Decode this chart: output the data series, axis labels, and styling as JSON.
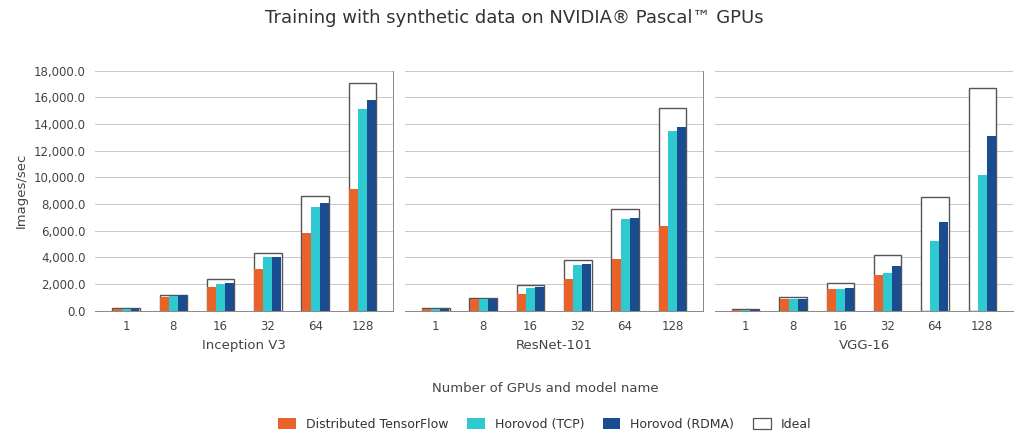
{
  "title": "Training with synthetic data on NVIDIA® Pascal™ GPUs",
  "xlabel": "Number of GPUs and model name",
  "ylabel": "Images/sec",
  "ylim": [
    0,
    18000
  ],
  "yticks": [
    0,
    2000,
    4000,
    6000,
    8000,
    10000,
    12000,
    14000,
    16000,
    18000
  ],
  "gpu_counts": [
    1,
    8,
    16,
    32,
    64,
    128
  ],
  "models": [
    "Inception V3",
    "ResNet-101",
    "VGG-16"
  ],
  "series": {
    "Distributed TensorFlow": {
      "color": "#E8622A",
      "data": {
        "Inception V3": [
          105,
          1000,
          1750,
          3100,
          5800,
          9100
        ],
        "ResNet-101": [
          95,
          870,
          1250,
          2400,
          3900,
          6350
        ],
        "VGG-16": [
          55,
          900,
          1600,
          2700,
          0,
          0
        ]
      }
    },
    "Horovod (TCP)": {
      "color": "#2ECAD0",
      "data": {
        "Inception V3": [
          105,
          1100,
          2000,
          4000,
          7800,
          15100
        ],
        "ResNet-101": [
          95,
          900,
          1700,
          3450,
          6850,
          13450
        ],
        "VGG-16": [
          55,
          900,
          1600,
          2850,
          5200,
          10200
        ]
      }
    },
    "Horovod (RDMA)": {
      "color": "#1A4D8F",
      "data": {
        "Inception V3": [
          105,
          1150,
          2100,
          4050,
          8050,
          15800
        ],
        "ResNet-101": [
          95,
          900,
          1750,
          3500,
          6950,
          13800
        ],
        "VGG-16": [
          55,
          900,
          1700,
          3350,
          6650,
          13100
        ]
      }
    },
    "Ideal": {
      "color": "#FFFFFF",
      "edgecolor": "#555555",
      "data": {
        "Inception V3": [
          210,
          1200,
          2400,
          4300,
          8600,
          17100
        ],
        "ResNet-101": [
          190,
          950,
          1900,
          3800,
          7600,
          15200
        ],
        "VGG-16": [
          110,
          1050,
          2100,
          4200,
          8500,
          16700
        ]
      }
    }
  },
  "background_color": "#FFFFFF",
  "grid_color": "#C8C8C8",
  "title_fontsize": 13,
  "axis_fontsize": 9.5,
  "tick_fontsize": 8.5,
  "legend_fontsize": 9
}
